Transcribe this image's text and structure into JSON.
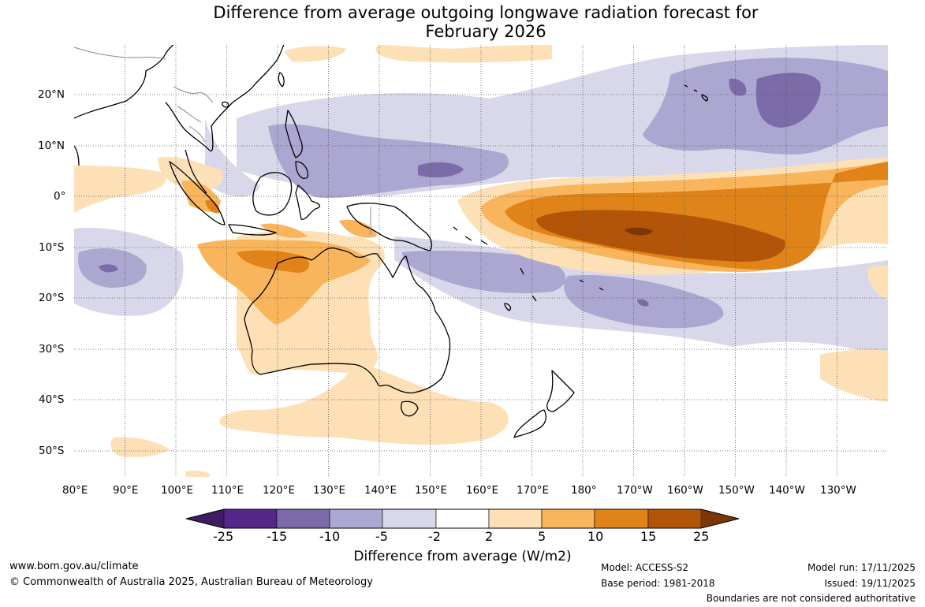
{
  "title_line1": "Difference from average outgoing longwave radiation forecast for",
  "title_line2": "February 2026",
  "lon_labels": [
    "80°E",
    "90°E",
    "100°E",
    "110°E",
    "120°E",
    "130°E",
    "140°E",
    "150°E",
    "160°E",
    "170°E",
    "180°",
    "170°W",
    "160°W",
    "150°W",
    "140°W",
    "130°W"
  ],
  "lat_labels": [
    "20°N",
    "10°N",
    "0°",
    "10°S",
    "20°S",
    "30°S",
    "40°S",
    "50°S"
  ],
  "colorbar": {
    "ticks": [
      "-25",
      "-15",
      "-10",
      "-5",
      "-2",
      "2",
      "5",
      "10",
      "15",
      "25"
    ],
    "colors": [
      "#3f1c63",
      "#55278a",
      "#7b6ca9",
      "#aca7d1",
      "#d8d8ea",
      "#ffffff",
      "#fde0b6",
      "#f9b55c",
      "#e08318",
      "#b35508",
      "#7c3504"
    ],
    "label": "Difference from average (W/m2)"
  },
  "footer": {
    "website": "www.bom.gov.au/climate",
    "copyright": "© Commonwealth of Australia 2025, Australian Bureau of Meteorology",
    "model": "Model: ACCESS-S2",
    "base_period": "Base period: 1981-2018",
    "model_run": "Model run: 17/11/2025",
    "issued": "Issued: 19/11/2025",
    "disclaimer": "Boundaries are not considered authoritative"
  }
}
